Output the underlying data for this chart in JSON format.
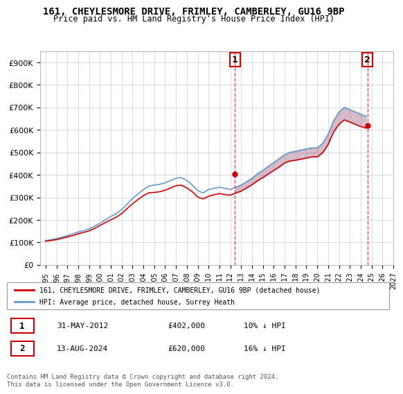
{
  "title_line1": "161, CHEYLESMORE DRIVE, FRIMLEY, CAMBERLEY, GU16 9BP",
  "title_line2": "Price paid vs. HM Land Registry's House Price Index (HPI)",
  "legend_label1": "161, CHEYLESMORE DRIVE, FRIMLEY, CAMBERLEY, GU16 9BP (detached house)",
  "legend_label2": "HPI: Average price, detached house, Surrey Heath",
  "annotation1": {
    "num": "1",
    "date": "31-MAY-2012",
    "price": "£402,000",
    "hpi": "10% ↓ HPI"
  },
  "annotation2": {
    "num": "2",
    "date": "13-AUG-2024",
    "price": "£620,000",
    "hpi": "16% ↓ HPI"
  },
  "footer": "Contains HM Land Registry data © Crown copyright and database right 2024.\nThis data is licensed under the Open Government Licence v3.0.",
  "property_color": "#cc0000",
  "hpi_color": "#6699cc",
  "ylim": [
    0,
    950000
  ],
  "yticks": [
    0,
    100000,
    200000,
    300000,
    400000,
    500000,
    600000,
    700000,
    800000,
    900000
  ],
  "ytick_labels": [
    "£0",
    "£100K",
    "£200K",
    "£300K",
    "£400K",
    "£500K",
    "£600K",
    "£700K",
    "£800K",
    "£900K"
  ],
  "vline1_x": 2012.42,
  "vline2_x": 2024.62,
  "hpi_years": [
    1995,
    1995.5,
    1996,
    1996.5,
    1997,
    1997.5,
    1998,
    1998.5,
    1999,
    1999.5,
    2000,
    2000.5,
    2001,
    2001.5,
    2002,
    2002.5,
    2003,
    2003.5,
    2004,
    2004.5,
    2005,
    2005.5,
    2006,
    2006.5,
    2007,
    2007.5,
    2008,
    2008.5,
    2009,
    2009.5,
    2010,
    2010.5,
    2011,
    2011.5,
    2012,
    2012.5,
    2013,
    2013.5,
    2014,
    2014.5,
    2015,
    2015.5,
    2016,
    2016.5,
    2017,
    2017.5,
    2018,
    2018.5,
    2019,
    2019.5,
    2020,
    2020.5,
    2021,
    2021.5,
    2022,
    2022.5,
    2023,
    2023.5,
    2024,
    2024.5
  ],
  "hpi_values": [
    108000,
    112000,
    117000,
    123000,
    130000,
    138000,
    146000,
    152000,
    160000,
    172000,
    185000,
    200000,
    215000,
    228000,
    245000,
    270000,
    295000,
    315000,
    335000,
    350000,
    355000,
    358000,
    365000,
    375000,
    385000,
    388000,
    375000,
    355000,
    330000,
    320000,
    335000,
    340000,
    345000,
    340000,
    335000,
    345000,
    355000,
    370000,
    385000,
    405000,
    420000,
    438000,
    455000,
    472000,
    490000,
    500000,
    505000,
    510000,
    515000,
    520000,
    520000,
    540000,
    580000,
    640000,
    680000,
    700000,
    690000,
    680000,
    670000,
    660000
  ],
  "prop_years": [
    1995,
    1995.5,
    1996,
    1996.5,
    1997,
    1997.5,
    1998,
    1998.5,
    1999,
    1999.5,
    2000,
    2000.5,
    2001,
    2001.5,
    2002,
    2002.5,
    2003,
    2003.5,
    2004,
    2004.5,
    2005,
    2005.5,
    2006,
    2006.5,
    2007,
    2007.5,
    2008,
    2008.5,
    2009,
    2009.5,
    2010,
    2010.5,
    2011,
    2011.5,
    2012,
    2012.5,
    2013,
    2013.5,
    2014,
    2014.5,
    2015,
    2015.5,
    2016,
    2016.5,
    2017,
    2017.5,
    2018,
    2018.5,
    2019,
    2019.5,
    2020,
    2020.5,
    2021,
    2021.5,
    2022,
    2022.5,
    2023,
    2023.5,
    2024,
    2024.5
  ],
  "prop_values": [
    105000,
    108000,
    112000,
    118000,
    124000,
    130000,
    138000,
    144000,
    151000,
    162000,
    175000,
    188000,
    200000,
    212000,
    228000,
    250000,
    272000,
    290000,
    308000,
    320000,
    322000,
    325000,
    332000,
    342000,
    352000,
    354000,
    342000,
    325000,
    302000,
    293000,
    305000,
    312000,
    317000,
    312000,
    310000,
    319000,
    328000,
    342000,
    356000,
    374000,
    388000,
    404000,
    420000,
    435000,
    453000,
    462000,
    465000,
    470000,
    475000,
    480000,
    480000,
    498000,
    535000,
    590000,
    625000,
    645000,
    635000,
    625000,
    615000,
    608000
  ],
  "xlim": [
    1994.5,
    2027
  ],
  "xticks": [
    1995,
    1996,
    1997,
    1998,
    1999,
    2000,
    2001,
    2002,
    2003,
    2004,
    2005,
    2006,
    2007,
    2008,
    2009,
    2010,
    2011,
    2012,
    2013,
    2014,
    2015,
    2016,
    2017,
    2018,
    2019,
    2020,
    2021,
    2022,
    2023,
    2024,
    2025,
    2026,
    2027
  ],
  "bg_color": "#ffffff",
  "grid_color": "#cccccc",
  "hatch_color": "#ddaaaa",
  "point1_x": 2012.42,
  "point1_y": 402000,
  "point2_x": 2024.62,
  "point2_y": 620000
}
